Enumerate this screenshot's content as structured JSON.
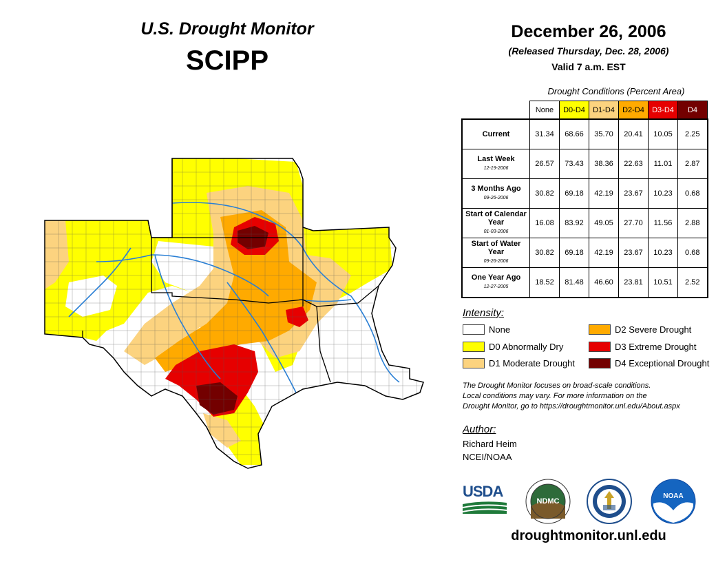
{
  "header": {
    "monitor_title": "U.S. Drought Monitor",
    "region": "SCIPP",
    "date": "December 26, 2006",
    "released": "(Released Thursday, Dec. 28, 2006)",
    "valid": "Valid 7 a.m. EST"
  },
  "table": {
    "caption": "Drought Conditions (Percent Area)",
    "columns": [
      {
        "label": "None",
        "bg": "#ffffff",
        "fg": "#000000"
      },
      {
        "label": "D0-D4",
        "bg": "#ffff00",
        "fg": "#000000"
      },
      {
        "label": "D1-D4",
        "bg": "#fcd37f",
        "fg": "#000000"
      },
      {
        "label": "D2-D4",
        "bg": "#ffaa00",
        "fg": "#000000"
      },
      {
        "label": "D3-D4",
        "bg": "#e60000",
        "fg": "#ffffff"
      },
      {
        "label": "D4",
        "bg": "#730000",
        "fg": "#ffffff"
      }
    ],
    "rows": [
      {
        "label": "Current",
        "sub": "",
        "values": [
          "31.34",
          "68.66",
          "35.70",
          "20.41",
          "10.05",
          "2.25"
        ]
      },
      {
        "label": "Last Week",
        "sub": "12-19-2006",
        "values": [
          "26.57",
          "73.43",
          "38.36",
          "22.63",
          "11.01",
          "2.87"
        ]
      },
      {
        "label": "3 Months Ago",
        "sub": "09-26-2006",
        "values": [
          "30.82",
          "69.18",
          "42.19",
          "23.67",
          "10.23",
          "0.68"
        ]
      },
      {
        "label": "Start of Calendar Year",
        "sub": "01-03-2006",
        "values": [
          "16.08",
          "83.92",
          "49.05",
          "27.70",
          "11.56",
          "2.88"
        ]
      },
      {
        "label": "Start of Water Year",
        "sub": "09-26-2006",
        "values": [
          "30.82",
          "69.18",
          "42.19",
          "23.67",
          "10.23",
          "0.68"
        ]
      },
      {
        "label": "One Year Ago",
        "sub": "12-27-2005",
        "values": [
          "18.52",
          "81.48",
          "46.60",
          "23.81",
          "10.51",
          "2.52"
        ]
      }
    ]
  },
  "legend": {
    "title": "Intensity:",
    "items": [
      {
        "label": "None",
        "color": "#ffffff"
      },
      {
        "label": "D0 Abnormally Dry",
        "color": "#ffff00"
      },
      {
        "label": "D1 Moderate Drought",
        "color": "#fcd37f"
      },
      {
        "label": "D2 Severe Drought",
        "color": "#ffaa00"
      },
      {
        "label": "D3 Extreme Drought",
        "color": "#e60000"
      },
      {
        "label": "D4 Exceptional Drought",
        "color": "#730000"
      }
    ]
  },
  "disclaimer": {
    "line1": "The Drought Monitor focuses on broad-scale conditions.",
    "line2": "Local conditions may vary. For more information on the",
    "line3": "Drought Monitor, go to https://droughtmonitor.unl.edu/About.aspx"
  },
  "author": {
    "title": "Author:",
    "name": "Richard Heim",
    "org": "NCEI/NOAA"
  },
  "logos": {
    "usda": "USDA",
    "ndmc": "NDMC",
    "noaa": "NOAA"
  },
  "footer": {
    "url": "droughtmonitor.unl.edu"
  }
}
